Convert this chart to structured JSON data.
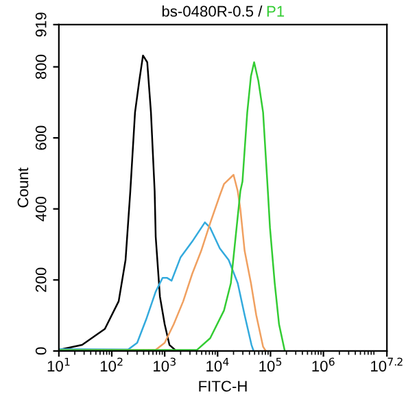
{
  "chart_data": {
    "type": "line",
    "title": "bs-0480R-0.5 /",
    "xlabel": "FITC-H",
    "ylabel": "Count",
    "log": "x",
    "xlim": [
      10,
      15848932
    ],
    "ylim": [
      0,
      919
    ],
    "xticks": [
      {
        "value": 10,
        "label": "10$^{1}$"
      },
      {
        "value": 100,
        "label": "10$^{2}$"
      },
      {
        "value": 1000,
        "label": "10$^{3}$"
      },
      {
        "value": 10000,
        "label": "10$^{4}$"
      },
      {
        "value": 100000,
        "label": "10$^{5}$"
      },
      {
        "value": 1000000,
        "label": "10$^{6}$"
      },
      {
        "value": 15848932,
        "label": "10$^{7.2}$"
      }
    ],
    "yticks": [
      0,
      200,
      400,
      600,
      800,
      919
    ],
    "grid": false,
    "legend": false,
    "series": [
      {
        "color": "#000000",
        "x": [
          10,
          27.5,
          74,
          135,
          182,
          224,
          275,
          331,
          389,
          468,
          550,
          646,
          676,
          813,
          1000,
          1230,
          1660
        ],
        "values": [
          3,
          17,
          62,
          140,
          256,
          450,
          672,
          761,
          832,
          813,
          672,
          450,
          322,
          153,
          75,
          17,
          0
        ]
      },
      {
        "color": "#33aadd",
        "x": [
          10,
          204,
          302,
          447,
          676,
          912,
          1100,
          1350,
          2000,
          3310,
          5750,
          7240,
          11000,
          16200,
          24000,
          32400,
          43700,
          47900
        ],
        "values": [
          5,
          4,
          23,
          89,
          167,
          206,
          206,
          198,
          264,
          308,
          362,
          347,
          289,
          256,
          191,
          101,
          17,
          0
        ]
      },
      {
        "color": "#f0a060",
        "x": [
          10,
          676,
          1000,
          1480,
          2240,
          3310,
          4900,
          7240,
          11000,
          13200,
          20000,
          24000,
          26900,
          32400,
          42700,
          53700,
          72400,
          81300
        ],
        "values": [
          2,
          3,
          23,
          75,
          140,
          217,
          282,
          360,
          438,
          470,
          496,
          450,
          400,
          282,
          191,
          101,
          12,
          0
        ]
      },
      {
        "name": "P1",
        "color": "#33cc33",
        "x": [
          10,
          4070,
          7240,
          13200,
          17800,
          21900,
          26900,
          29500,
          36300,
          42700,
          49000,
          58900,
          72400,
          89100,
          97700,
          120000,
          145000,
          186000
        ],
        "values": [
          2,
          3,
          36,
          114,
          191,
          321,
          450,
          477,
          671,
          774,
          813,
          761,
          672,
          450,
          347,
          191,
          75,
          0
        ]
      }
    ]
  }
}
